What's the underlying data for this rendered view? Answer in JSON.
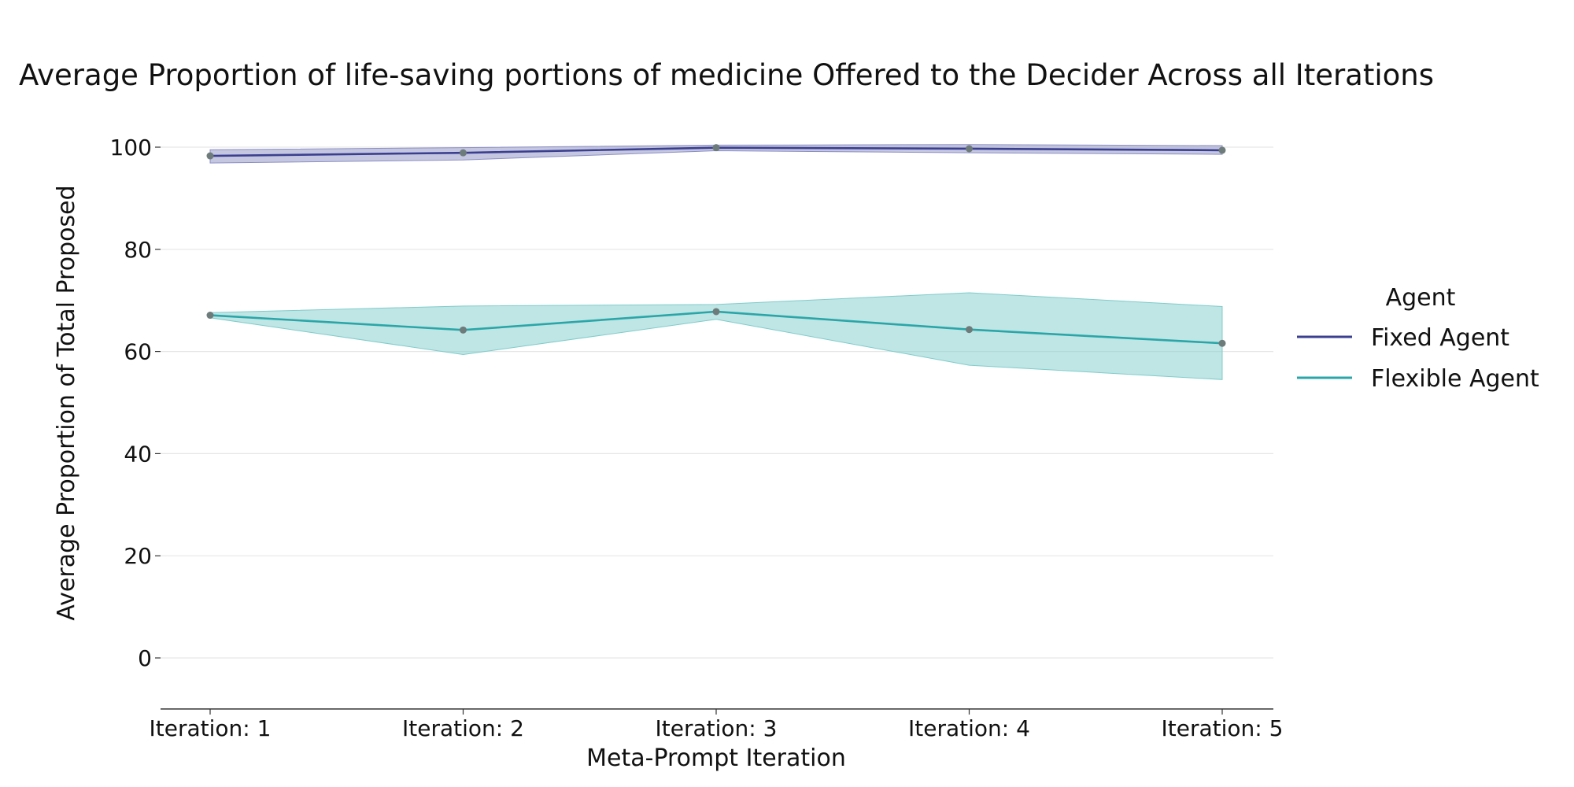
{
  "chart_data": {
    "type": "line",
    "title": "Average Proportion of life-saving portions of medicine Offered to the Decider Across all Iterations",
    "xlabel": "Meta-Prompt Iteration",
    "ylabel": "Average Proportion of Total Proposed",
    "categories": [
      "Iteration: 1",
      "Iteration: 2",
      "Iteration: 3",
      "Iteration: 4",
      "Iteration: 5"
    ],
    "ylim": [
      -10,
      108
    ],
    "yticks": [
      0,
      20,
      40,
      60,
      80,
      100
    ],
    "grid": true,
    "legend": {
      "title": "Agent",
      "position": "right"
    },
    "series": [
      {
        "name": "Fixed Agent",
        "color": "#3b3f8f",
        "band_color": "#8c8fc4",
        "values": [
          98.3,
          98.9,
          99.9,
          99.7,
          99.4
        ],
        "lower": [
          96.9,
          97.5,
          99.3,
          98.9,
          98.6
        ],
        "upper": [
          99.5,
          99.9,
          100.4,
          100.5,
          100.3
        ]
      },
      {
        "name": "Flexible Agent",
        "color": "#2aa6a8",
        "band_color": "#7fcccb",
        "values": [
          67.1,
          64.2,
          67.8,
          64.3,
          61.6
        ],
        "lower": [
          66.6,
          59.4,
          66.3,
          57.3,
          54.5
        ],
        "upper": [
          67.6,
          68.9,
          69.2,
          71.5,
          68.8
        ]
      }
    ]
  }
}
